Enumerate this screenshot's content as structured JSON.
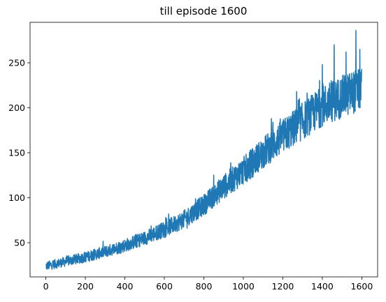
{
  "chart_data": {
    "type": "line",
    "title": "till episode 1600",
    "xlabel": "",
    "ylabel": "",
    "xlim": [
      -80,
      1680
    ],
    "ylim": [
      12,
      295
    ],
    "xticks": [
      0,
      200,
      400,
      600,
      800,
      1000,
      1200,
      1400,
      1600
    ],
    "yticks": [
      50,
      100,
      150,
      200,
      250
    ],
    "grid": false,
    "series": [
      {
        "color": "#1f77b4",
        "episodes": 1600,
        "trend_points": [
          [
            0,
            24
          ],
          [
            100,
            29
          ],
          [
            200,
            34
          ],
          [
            300,
            40
          ],
          [
            400,
            47
          ],
          [
            500,
            55
          ],
          [
            600,
            65
          ],
          [
            700,
            76
          ],
          [
            800,
            92
          ],
          [
            900,
            112
          ],
          [
            1000,
            130
          ],
          [
            1100,
            150
          ],
          [
            1200,
            168
          ],
          [
            1300,
            185
          ],
          [
            1400,
            202
          ],
          [
            1500,
            212
          ],
          [
            1600,
            222
          ]
        ],
        "peaks": [
          [
            1150,
            184
          ],
          [
            1270,
            218
          ],
          [
            1400,
            248
          ],
          [
            1460,
            270
          ],
          [
            1520,
            262
          ],
          [
            1570,
            286
          ],
          [
            1590,
            265
          ]
        ]
      }
    ]
  }
}
